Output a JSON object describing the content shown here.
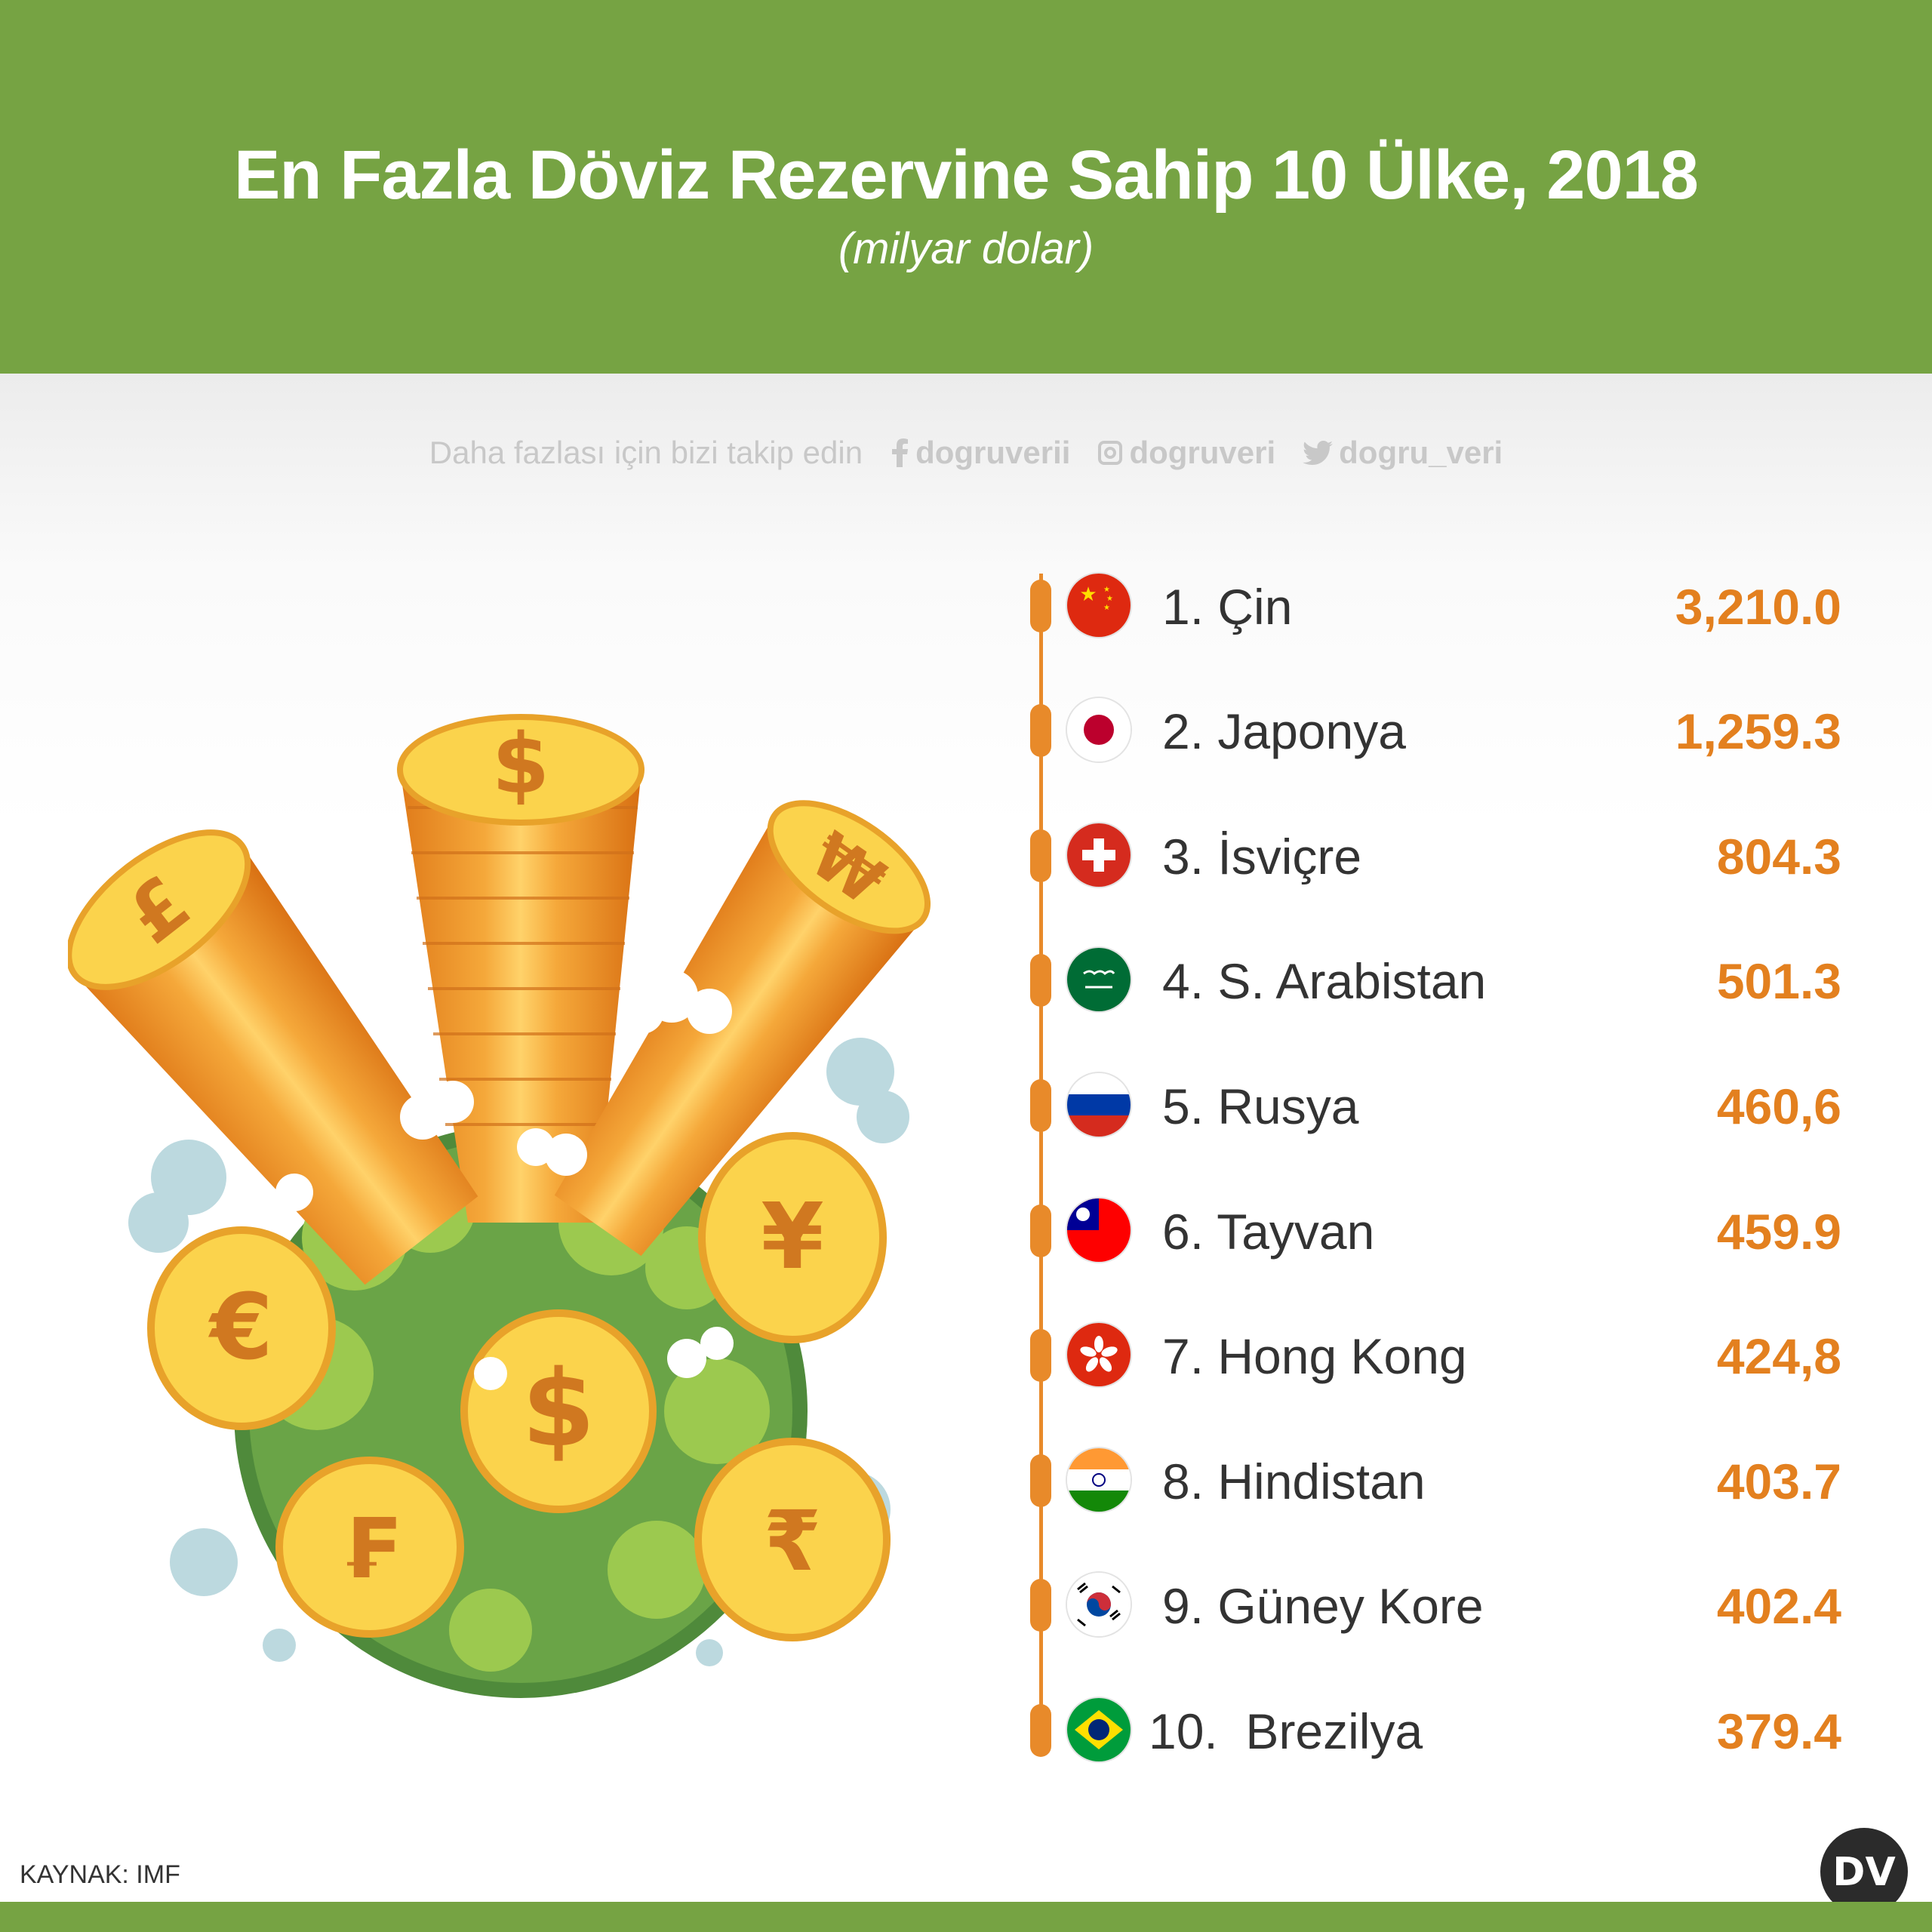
{
  "header": {
    "title": "En Fazla Döviz Rezervine Sahip 10 Ülke, 2018",
    "subtitle": "(milyar dolar)",
    "color": "#76a343"
  },
  "social": {
    "lead": "Daha fazlası için bizi takip edin",
    "facebook": "dogruverii",
    "instagram": "dogruveri",
    "twitter": "dogru_veri"
  },
  "accent_color": "#e3801f",
  "chart_data": {
    "type": "table",
    "title": "En Fazla Döviz Rezervine Sahip 10 Ülke, 2018",
    "subtitle": "(milyar dolar)",
    "rows": [
      {
        "label": "1. Çin",
        "value_text": "3,210.0",
        "value": 3210.0,
        "flag": "china-flag-icon"
      },
      {
        "label": "2. Japonya",
        "value_text": "1,259.3",
        "value": 1259.3,
        "flag": "japan-flag-icon"
      },
      {
        "label": "3. İsviçre",
        "value_text": "804.3",
        "value": 804.3,
        "flag": "switzerland-flag-icon"
      },
      {
        "label": "4. S. Arabistan",
        "value_text": "501.3",
        "value": 501.3,
        "flag": "saudi-arabia-flag-icon"
      },
      {
        "label": "5. Rusya",
        "value_text": "460,6",
        "value": 460.6,
        "flag": "russia-flag-icon"
      },
      {
        "label": "6. Tayvan",
        "value_text": "459.9",
        "value": 459.9,
        "flag": "taiwan-flag-icon"
      },
      {
        "label": "7. Hong Kong",
        "value_text": "424,8",
        "value": 424.8,
        "flag": "hong-kong-flag-icon"
      },
      {
        "label": "8. Hindistan",
        "value_text": "403.7",
        "value": 403.7,
        "flag": "india-flag-icon"
      },
      {
        "label": "9. Güney Kore",
        "value_text": "402.4",
        "value": 402.4,
        "flag": "south-korea-flag-icon"
      },
      {
        "label": "10.  Brezilya",
        "value_text": "379.4",
        "value": 379.4,
        "flag": "brazil-flag-icon"
      }
    ]
  },
  "illustration": {
    "icon": "coin-towers-illustration",
    "symbols": [
      "$",
      "£",
      "₩",
      "€",
      "¥",
      "$",
      "₣",
      "₹"
    ]
  },
  "source": "KAYNAK: IMF",
  "logo_text": "DV"
}
